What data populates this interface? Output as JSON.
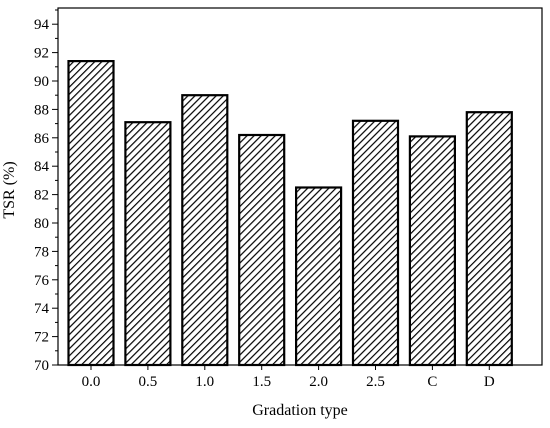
{
  "chart_data": {
    "type": "bar",
    "xlabel": "Gradation type",
    "ylabel": "TSR (%)",
    "ylim": [
      70,
      95
    ],
    "yticks": [
      70,
      72,
      74,
      76,
      78,
      80,
      82,
      84,
      86,
      88,
      90,
      92,
      94
    ],
    "categories": [
      "0.0",
      "0.5",
      "1.0",
      "1.5",
      "2.0",
      "2.5",
      "C",
      "D"
    ],
    "values": [
      91.4,
      87.1,
      89.0,
      86.2,
      82.5,
      87.2,
      86.1,
      87.8
    ],
    "grid": false,
    "bar_pattern": "diagonal-hatch",
    "bar_color": "#000000"
  }
}
